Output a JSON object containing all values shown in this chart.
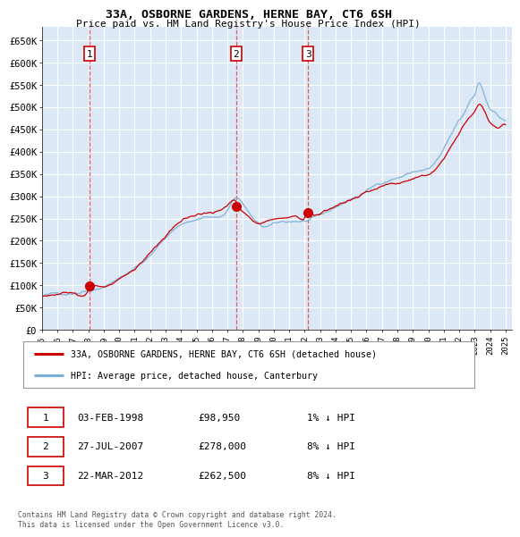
{
  "title": "33A, OSBORNE GARDENS, HERNE BAY, CT6 6SH",
  "subtitle": "Price paid vs. HM Land Registry's House Price Index (HPI)",
  "ylabel_ticks": [
    "£0",
    "£50K",
    "£100K",
    "£150K",
    "£200K",
    "£250K",
    "£300K",
    "£350K",
    "£400K",
    "£450K",
    "£500K",
    "£550K",
    "£600K",
    "£650K"
  ],
  "ytick_values": [
    0,
    50000,
    100000,
    150000,
    200000,
    250000,
    300000,
    350000,
    400000,
    450000,
    500000,
    550000,
    600000,
    650000
  ],
  "ylim": [
    0,
    680000
  ],
  "xlim_start": 1995.0,
  "xlim_end": 2025.4,
  "xtick_labels": [
    "1995",
    "1996",
    "1997",
    "1998",
    "1999",
    "2000",
    "2001",
    "2002",
    "2003",
    "2004",
    "2005",
    "2006",
    "2007",
    "2008",
    "2009",
    "2010",
    "2011",
    "2012",
    "2013",
    "2014",
    "2015",
    "2016",
    "2017",
    "2018",
    "2019",
    "2020",
    "2021",
    "2022",
    "2023",
    "2024",
    "2025"
  ],
  "sale_dates": [
    1998.08,
    2007.56,
    2012.22
  ],
  "sale_prices": [
    98950,
    278000,
    262500
  ],
  "sale_labels": [
    "1",
    "2",
    "3"
  ],
  "bg_color": "#dce8f5",
  "grid_color": "#ffffff",
  "hpi_line_color": "#7ab0d8",
  "price_line_color": "#cc0000",
  "legend_items": [
    "33A, OSBORNE GARDENS, HERNE BAY, CT6 6SH (detached house)",
    "HPI: Average price, detached house, Canterbury"
  ],
  "table_rows": [
    [
      "1",
      "03-FEB-1998",
      "£98,950",
      "1% ↓ HPI"
    ],
    [
      "2",
      "27-JUL-2007",
      "£278,000",
      "8% ↓ HPI"
    ],
    [
      "3",
      "22-MAR-2012",
      "£262,500",
      "8% ↓ HPI"
    ]
  ],
  "footer": "Contains HM Land Registry data © Crown copyright and database right 2024.\nThis data is licensed under the Open Government Licence v3.0."
}
